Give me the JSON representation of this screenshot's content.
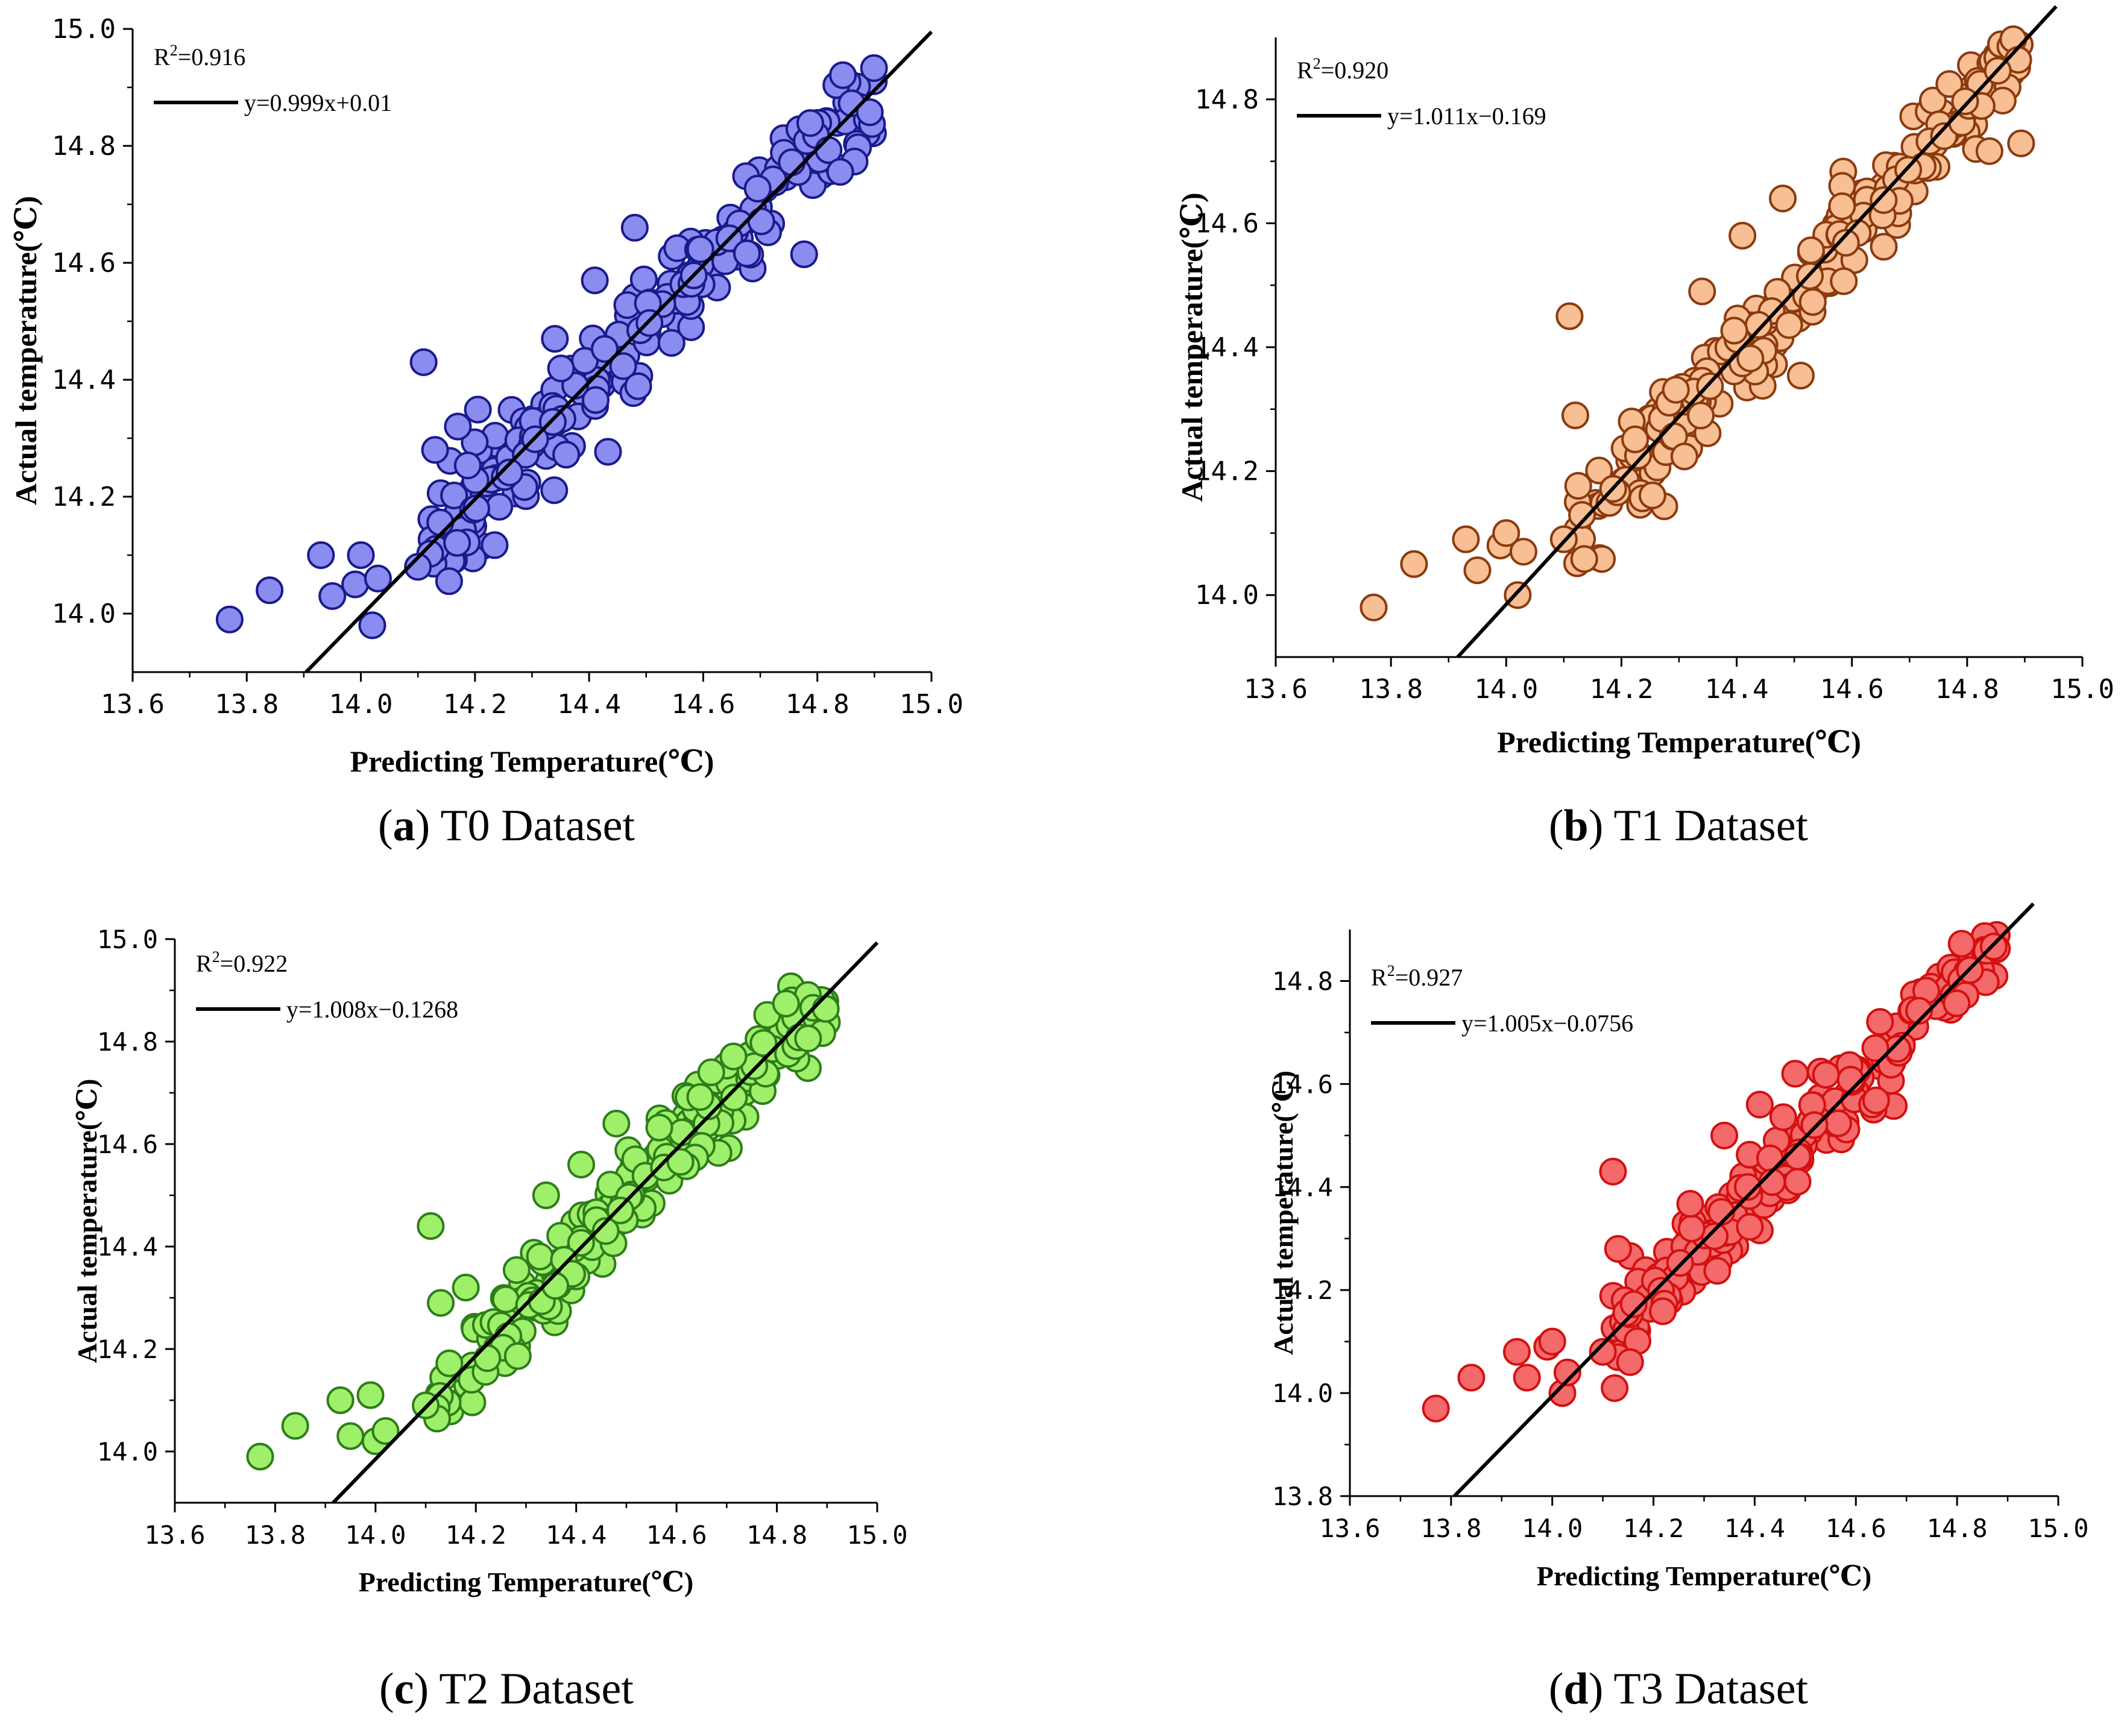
{
  "chart_data": [
    {
      "id": "a",
      "type": "scatter",
      "caption_letter": "a",
      "caption_text": "T0 Dataset",
      "xlabel": "Predicting Temperature(℃)",
      "ylabel": "Actual temperature(℃)",
      "xlim": [
        13.6,
        15.0
      ],
      "ylim": [
        13.9,
        15.0
      ],
      "x_ticks": [
        "13.6",
        "13.8",
        "14.0",
        "14.2",
        "14.4",
        "14.6",
        "14.8",
        "15.0"
      ],
      "y_ticks": [
        "14.0",
        "14.2",
        "14.4",
        "14.6",
        "14.8",
        "15.0"
      ],
      "r2_label": "R",
      "r2_sup": "2",
      "r2_value": "=0.916",
      "fit_label": "y=0.999x+0.01",
      "fit": {
        "slope": 0.999,
        "intercept": 0.01
      },
      "marker_fill": "#8a8cf0",
      "marker_edge": "#1a1a8c",
      "outliers": [
        [
          13.77,
          13.99
        ],
        [
          13.84,
          14.04
        ],
        [
          13.93,
          14.1
        ],
        [
          13.95,
          14.03
        ],
        [
          13.99,
          14.05
        ],
        [
          14.0,
          14.1
        ],
        [
          14.02,
          13.98
        ],
        [
          14.03,
          14.06
        ],
        [
          14.1,
          14.08
        ],
        [
          14.11,
          14.43
        ],
        [
          14.13,
          14.28
        ],
        [
          14.17,
          14.32
        ],
        [
          14.41,
          14.57
        ],
        [
          14.48,
          14.66
        ],
        [
          14.34,
          14.47
        ]
      ]
    },
    {
      "id": "b",
      "type": "scatter",
      "caption_letter": "b",
      "caption_text": "T1 Dataset",
      "xlabel": "Predicting Temperature(℃)",
      "ylabel": "Actual temperature(℃)",
      "xlim": [
        13.6,
        15.0
      ],
      "ylim": [
        13.9,
        14.9
      ],
      "x_ticks": [
        "13.6",
        "13.8",
        "14.0",
        "14.2",
        "14.4",
        "14.6",
        "14.8",
        "15.0"
      ],
      "y_ticks": [
        "14.0",
        "14.2",
        "14.4",
        "14.6",
        "14.8"
      ],
      "r2_label": "R",
      "r2_sup": "2",
      "r2_value": "=0.920",
      "fit_label": "y=1.011x−0.169",
      "fit": {
        "slope": 1.011,
        "intercept": -0.169
      },
      "marker_fill": "#f8bf94",
      "marker_edge": "#8b3a0e",
      "outliers": [
        [
          13.77,
          13.98
        ],
        [
          13.84,
          14.05
        ],
        [
          13.93,
          14.09
        ],
        [
          13.95,
          14.04
        ],
        [
          13.99,
          14.08
        ],
        [
          14.0,
          14.1
        ],
        [
          14.02,
          14.0
        ],
        [
          14.03,
          14.07
        ],
        [
          14.1,
          14.09
        ],
        [
          14.11,
          14.45
        ],
        [
          14.12,
          14.29
        ],
        [
          14.34,
          14.49
        ],
        [
          14.41,
          14.58
        ],
        [
          14.48,
          14.64
        ]
      ]
    },
    {
      "id": "c",
      "type": "scatter",
      "caption_letter": "c",
      "caption_text": "T2 Dataset",
      "xlabel": "Predicting Temperature(℃)",
      "ylabel": "Actual temperature(℃)",
      "xlim": [
        13.6,
        15.0
      ],
      "ylim": [
        13.9,
        15.0
      ],
      "x_ticks": [
        "13.6",
        "13.8",
        "14.0",
        "14.2",
        "14.4",
        "14.6",
        "14.8",
        "15.0"
      ],
      "y_ticks": [
        "14.0",
        "14.2",
        "14.4",
        "14.6",
        "14.8",
        "15.0"
      ],
      "r2_label": "R",
      "r2_sup": "2",
      "r2_value": "=0.922",
      "fit_label": "y=1.008x−0.1268",
      "fit": {
        "slope": 1.008,
        "intercept": -0.1268
      },
      "marker_fill": "#9ef06a",
      "marker_edge": "#2e7d1a",
      "outliers": [
        [
          13.77,
          13.99
        ],
        [
          13.84,
          14.05
        ],
        [
          13.93,
          14.1
        ],
        [
          13.95,
          14.03
        ],
        [
          13.99,
          14.11
        ],
        [
          14.0,
          14.02
        ],
        [
          14.02,
          14.04
        ],
        [
          14.1,
          14.09
        ],
        [
          14.11,
          14.44
        ],
        [
          14.13,
          14.29
        ],
        [
          14.18,
          14.32
        ],
        [
          14.34,
          14.5
        ],
        [
          14.41,
          14.56
        ],
        [
          14.48,
          14.64
        ]
      ]
    },
    {
      "id": "d",
      "type": "scatter",
      "caption_letter": "d",
      "caption_text": "T3 Dataset",
      "xlabel": "Predicting Temperature(℃)",
      "ylabel": "Actual temperature(℃)",
      "xlim": [
        13.6,
        15.0
      ],
      "ylim": [
        13.8,
        14.9
      ],
      "x_ticks": [
        "13.6",
        "13.8",
        "14.0",
        "14.2",
        "14.4",
        "14.6",
        "14.8",
        "15.0"
      ],
      "y_ticks": [
        "13.8",
        "14.0",
        "14.2",
        "14.4",
        "14.6",
        "14.8"
      ],
      "r2_label": "R",
      "r2_sup": "2",
      "r2_value": "=0.927",
      "fit_label": "y=1.005x−0.0756",
      "fit": {
        "slope": 1.005,
        "intercept": -0.0756
      },
      "marker_fill": "#f46a6a",
      "marker_edge": "#d41010",
      "outliers": [
        [
          13.77,
          13.97
        ],
        [
          13.84,
          14.03
        ],
        [
          13.93,
          14.08
        ],
        [
          13.95,
          14.03
        ],
        [
          13.99,
          14.09
        ],
        [
          14.0,
          14.1
        ],
        [
          14.02,
          14.0
        ],
        [
          14.03,
          14.04
        ],
        [
          14.1,
          14.08
        ],
        [
          14.12,
          14.43
        ],
        [
          14.13,
          14.28
        ],
        [
          14.34,
          14.5
        ],
        [
          14.41,
          14.56
        ],
        [
          14.48,
          14.62
        ]
      ]
    }
  ]
}
